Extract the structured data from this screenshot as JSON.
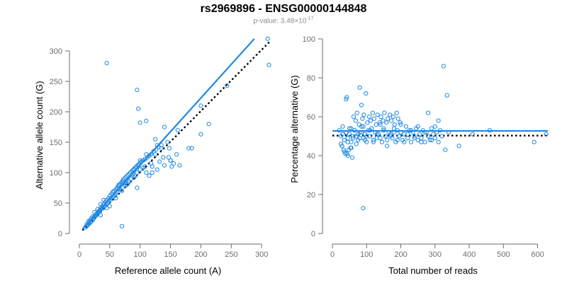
{
  "title": "rs2969896 - ENSG00000144848",
  "subtitle": {
    "prefix": "p-value: 3.48×10",
    "exponent": "-17"
  },
  "colors": {
    "accent": "#1e88e5",
    "axis": "#6e6e6e",
    "reference": "#000000"
  },
  "chart_data": [
    {
      "type": "scatter",
      "title": "",
      "xlabel": "Reference allele count (A)",
      "ylabel": "Alternative allele count (G)",
      "xlim": [
        0,
        315
      ],
      "ylim": [
        0,
        300
      ],
      "xticks": [
        0,
        50,
        100,
        150,
        200,
        250,
        300
      ],
      "yticks": [
        0,
        50,
        100,
        150,
        200,
        250,
        300
      ],
      "fit_line": {
        "x": [
          5,
          288
        ],
        "y": [
          7,
          320
        ]
      },
      "reference_line": {
        "x": [
          5,
          315
        ],
        "y": [
          5,
          317
        ]
      },
      "x": [
        45,
        95,
        97,
        100,
        110,
        125,
        128,
        135,
        140,
        200,
        243,
        310,
        312,
        213,
        200,
        180,
        162,
        145,
        148,
        150,
        147,
        152,
        155,
        160,
        165,
        150,
        138,
        140,
        132,
        128,
        125,
        120,
        118,
        115,
        110,
        105,
        100,
        98,
        95,
        92,
        90,
        88,
        85,
        82,
        80,
        78,
        75,
        72,
        70,
        68,
        65,
        62,
        60,
        58,
        55,
        52,
        50,
        48,
        46,
        44,
        42,
        40,
        38,
        36,
        34,
        32,
        30,
        28,
        26,
        24,
        22,
        20,
        18,
        16,
        14,
        12,
        10,
        12,
        15,
        18,
        20,
        25,
        28,
        30,
        33,
        35,
        38,
        40,
        43,
        45,
        48,
        50,
        53,
        55,
        57,
        60,
        62,
        64,
        66,
        68,
        70,
        72,
        74,
        76,
        78,
        80,
        82,
        84,
        86,
        88,
        90,
        92,
        94,
        96,
        98,
        100,
        102,
        105,
        108,
        112,
        115,
        118,
        122,
        126,
        130,
        135,
        185,
        70,
        25,
        35,
        55,
        30,
        40,
        65,
        90,
        100,
        110,
        85,
        75,
        60,
        50,
        45,
        35,
        22,
        15,
        120,
        95,
        108
      ],
      "y": [
        280,
        236,
        205,
        182,
        185,
        155,
        145,
        140,
        175,
        210,
        243,
        320,
        277,
        180,
        163,
        140,
        170,
        150,
        140,
        120,
        125,
        110,
        115,
        130,
        112,
        120,
        125,
        112,
        118,
        105,
        130,
        110,
        115,
        95,
        100,
        108,
        105,
        112,
        100,
        95,
        92,
        98,
        90,
        85,
        82,
        80,
        78,
        85,
        70,
        72,
        75,
        68,
        65,
        62,
        60,
        58,
        55,
        52,
        50,
        48,
        45,
        48,
        42,
        40,
        38,
        35,
        32,
        30,
        28,
        25,
        22,
        20,
        18,
        16,
        14,
        12,
        10,
        15,
        18,
        22,
        25,
        28,
        32,
        35,
        38,
        42,
        45,
        48,
        52,
        55,
        58,
        62,
        65,
        68,
        70,
        72,
        75,
        78,
        80,
        82,
        85,
        88,
        90,
        92,
        94,
        96,
        98,
        100,
        102,
        104,
        106,
        108,
        110,
        112,
        114,
        116,
        118,
        120,
        122,
        125,
        128,
        130,
        135,
        138,
        142,
        145,
        140,
        12,
        35,
        48,
        68,
        40,
        55,
        80,
        105,
        120,
        130,
        90,
        82,
        58,
        45,
        42,
        30,
        28,
        20,
        100,
        75,
        110
      ]
    },
    {
      "type": "scatter",
      "title": "",
      "xlabel": "Total number of reads",
      "ylabel": "Percentage alternative (G)",
      "xlim": [
        0,
        630
      ],
      "ylim": [
        0,
        100
      ],
      "xticks": [
        0,
        100,
        200,
        300,
        400,
        500,
        600
      ],
      "yticks": [
        0,
        20,
        40,
        60,
        80,
        100
      ],
      "fit_line": {
        "x": [
          0,
          630
        ],
        "y": [
          52.7,
          52.7
        ]
      },
      "reference_line": {
        "x": [
          0,
          630
        ],
        "y": [
          50.3,
          50.3
        ]
      },
      "x": [
        325,
        80,
        98,
        40,
        42,
        335,
        280,
        90,
        85,
        460,
        410,
        590,
        625,
        370,
        340,
        330,
        310,
        300,
        290,
        280,
        270,
        260,
        250,
        240,
        230,
        220,
        210,
        200,
        190,
        180,
        170,
        160,
        150,
        140,
        130,
        120,
        110,
        100,
        95,
        90,
        85,
        80,
        75,
        70,
        65,
        60,
        55,
        50,
        45,
        40,
        35,
        30,
        25,
        20,
        25,
        30,
        35,
        40,
        45,
        50,
        55,
        60,
        65,
        70,
        75,
        80,
        85,
        90,
        95,
        100,
        105,
        110,
        115,
        120,
        125,
        130,
        135,
        140,
        145,
        150,
        155,
        160,
        165,
        170,
        175,
        180,
        185,
        190,
        195,
        200,
        205,
        210,
        215,
        220,
        225,
        230,
        235,
        240,
        245,
        250,
        255,
        260,
        265,
        270,
        275,
        280,
        285,
        290,
        295,
        300,
        305,
        310,
        315,
        320,
        62,
        68,
        72,
        78,
        88,
        92,
        102,
        108,
        112,
        118,
        122,
        128,
        132,
        138,
        142,
        148,
        152,
        158,
        162,
        168,
        172,
        178,
        182,
        188,
        192,
        198,
        35,
        45,
        55,
        38,
        48,
        58,
        28,
        33,
        43,
        53
      ],
      "y": [
        86,
        75,
        72,
        69,
        70,
        71,
        62,
        13,
        66,
        53,
        51,
        47,
        51,
        45,
        52,
        43,
        58,
        55,
        48,
        50,
        52,
        47,
        55,
        49,
        53,
        51,
        47,
        56,
        48,
        52,
        50,
        45,
        54,
        49,
        51,
        47,
        53,
        50,
        48,
        55,
        52,
        49,
        51,
        46,
        53,
        50,
        47,
        54,
        49,
        52,
        48,
        51,
        46,
        53,
        50,
        55,
        48,
        52,
        47,
        51,
        54,
        49,
        53,
        50,
        48,
        52,
        55,
        49,
        51,
        47,
        53,
        50,
        54,
        48,
        52,
        49,
        51,
        56,
        47,
        53,
        50,
        48,
        52,
        51,
        49,
        54,
        47,
        53,
        50,
        52,
        48,
        51,
        55,
        49,
        53,
        47,
        52,
        50,
        54,
        48,
        51,
        49,
        53,
        47,
        52,
        50,
        48,
        54,
        51,
        49,
        52,
        47,
        53,
        50,
        60,
        58,
        62,
        56,
        59,
        61,
        57,
        60,
        58,
        62,
        59,
        56,
        61,
        57,
        60,
        58,
        62,
        57,
        59,
        61,
        58,
        60,
        56,
        62,
        59,
        57,
        42,
        40,
        44,
        41,
        43,
        39,
        45,
        43,
        41,
        44
      ]
    }
  ]
}
